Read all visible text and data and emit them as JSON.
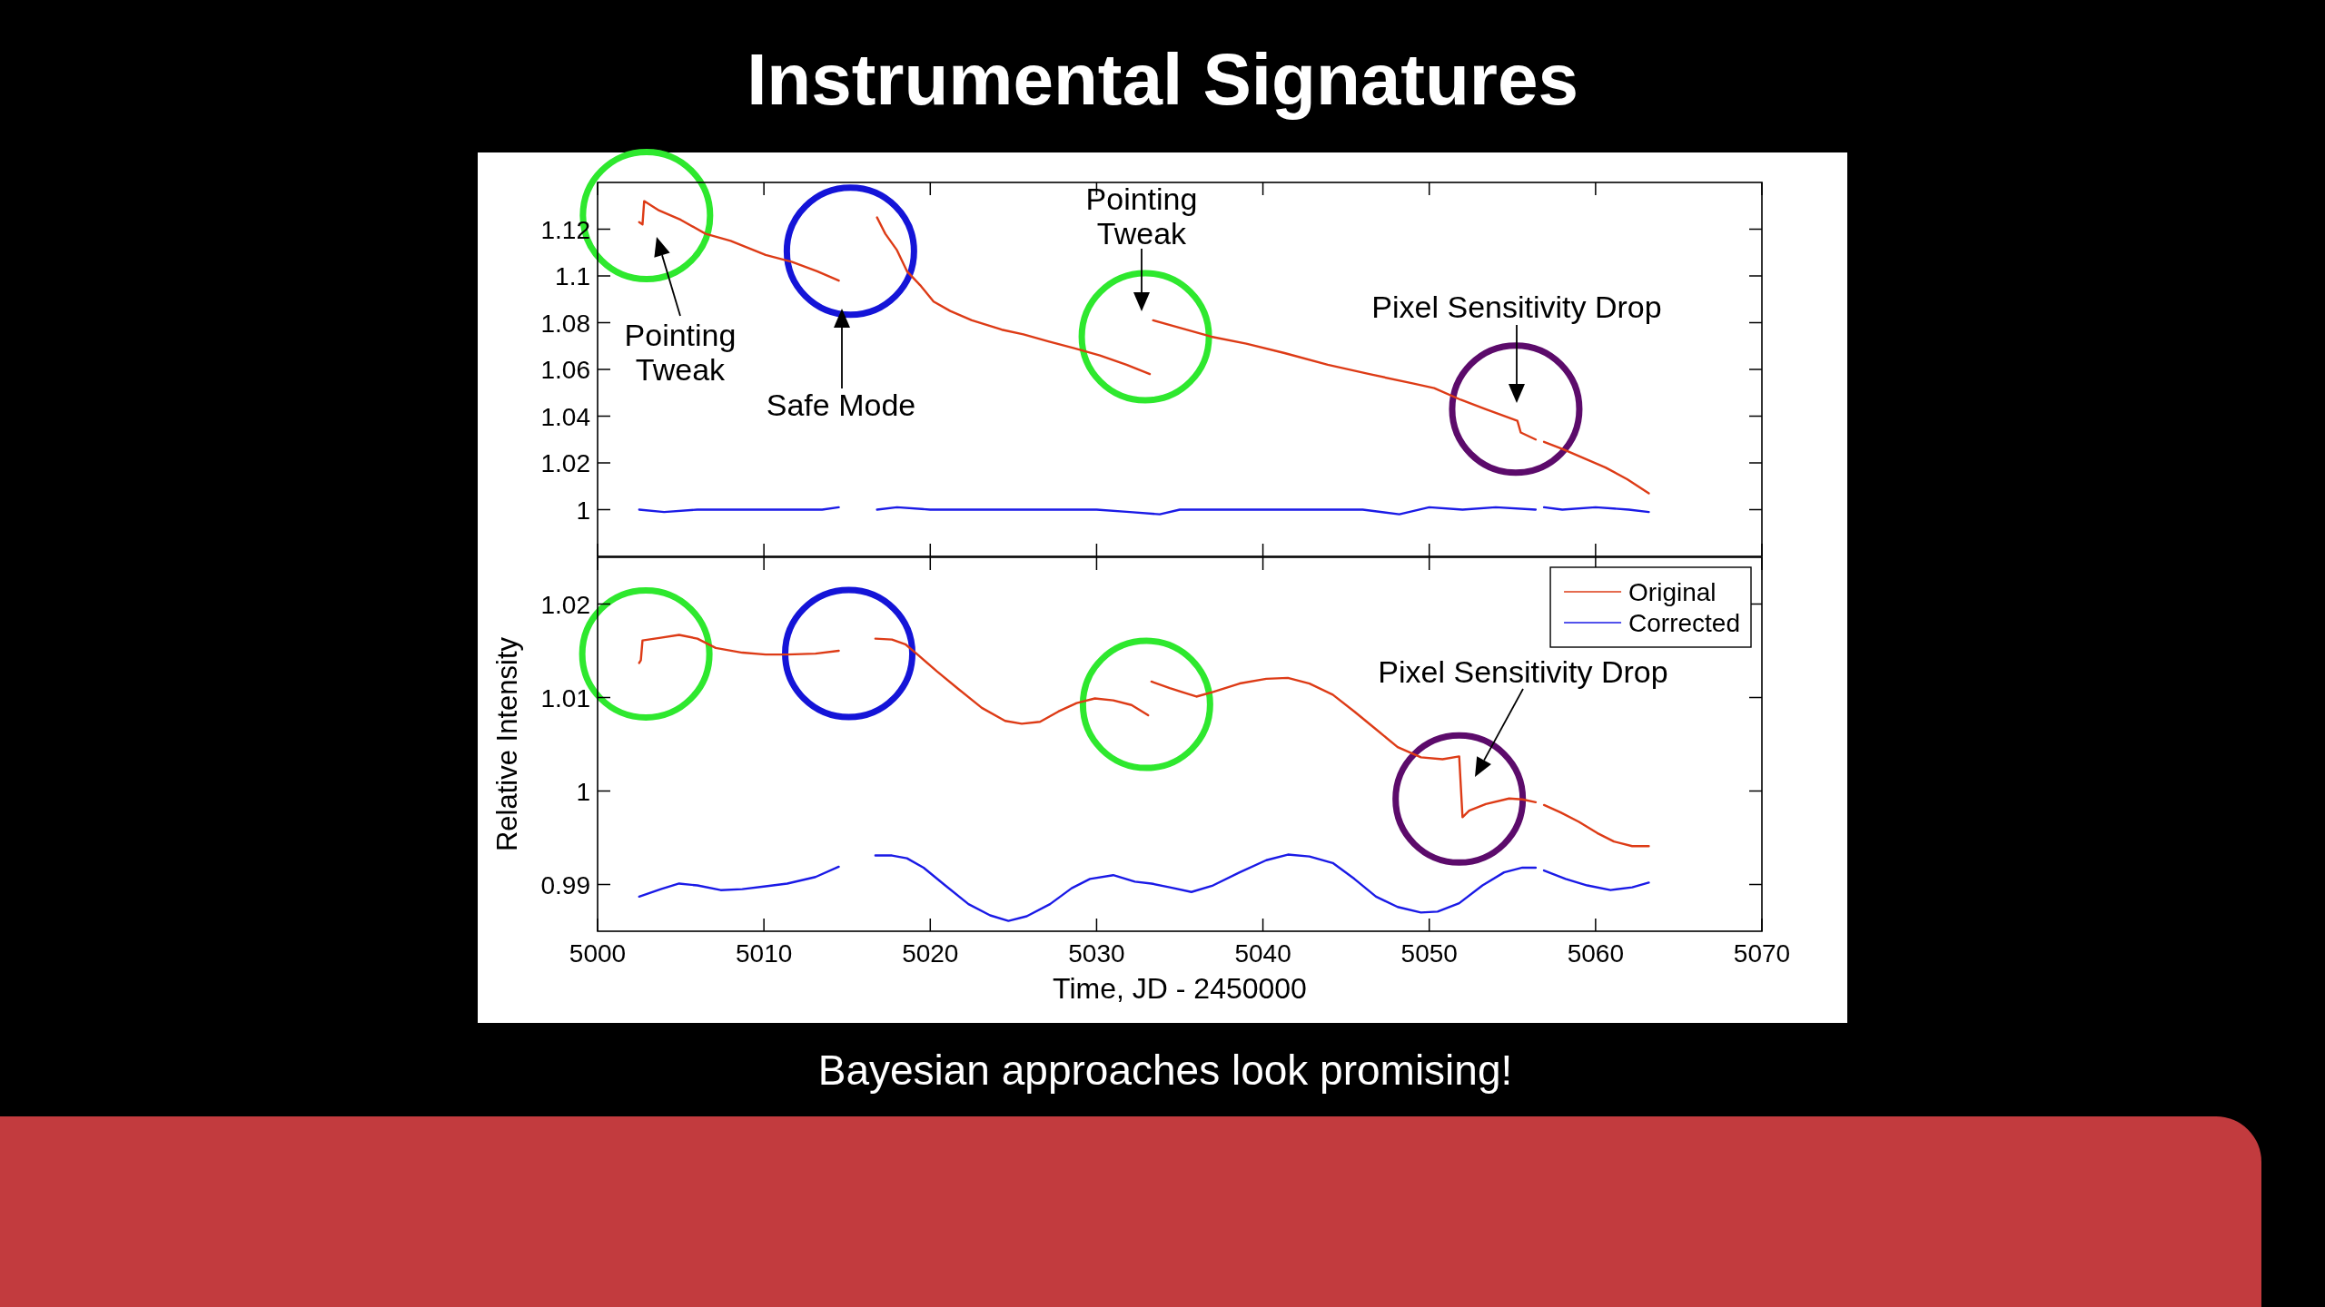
{
  "chart_data": [
    {
      "type": "line",
      "title": "Instrumental Signatures",
      "xlim": [
        5000,
        5070
      ],
      "xticks": [
        5000,
        5010,
        5020,
        5030,
        5040,
        5050,
        5060,
        5070
      ],
      "ylim": [
        0.98,
        1.14
      ],
      "yticks": [
        1,
        1.02,
        1.04,
        1.06,
        1.08,
        1.1,
        1.12
      ],
      "tick_labels": "y",
      "series": [
        {
          "color": "#dd3b16",
          "x": [
            5002.5,
            5002.7,
            5002.8,
            5003.7,
            5005.0,
            5006.5,
            5008.0,
            5010.1,
            5011.7,
            5013.2,
            5014.5,
            5015.6,
            5016.8,
            5017.3,
            5018.0,
            5018.6,
            5019.4,
            5020.2,
            5021.2,
            5022.5,
            5024.3,
            5025.6,
            5027.1,
            5028.7,
            5030.2,
            5031.8,
            5033.2,
            5033.3,
            5033.4,
            5034.9,
            5036.9,
            5039.0,
            5041.3,
            5043.9,
            5046.4,
            5049.0,
            5050.3,
            5051.9,
            5053.4,
            5055.3,
            5055.5,
            5056.4,
            5056.6,
            5056.9,
            5058.0,
            5059.3,
            5060.6,
            5061.9,
            5063.2
          ],
          "values": [
            1.123,
            1.122,
            1.132,
            1.128,
            1.124,
            1.118,
            1.115,
            1.109,
            1.106,
            1.102,
            1.098,
            null,
            1.125,
            1.118,
            1.111,
            1.102,
            1.096,
            1.089,
            1.085,
            1.081,
            1.077,
            1.075,
            1.072,
            1.069,
            1.066,
            1.062,
            1.058,
            null,
            1.081,
            1.078,
            1.074,
            1.071,
            1.067,
            1.062,
            1.058,
            1.054,
            1.052,
            1.047,
            1.043,
            1.038,
            1.033,
            1.03,
            null,
            1.029,
            1.026,
            1.022,
            1.018,
            1.013,
            1.007
          ]
        },
        {
          "color": "#1a1ae6",
          "x": [
            5002.5,
            5004.0,
            5006.0,
            5008.0,
            5010.0,
            5012.0,
            5013.5,
            5014.5,
            5015.6,
            5016.8,
            5018.0,
            5020.0,
            5022.0,
            5024.0,
            5026.0,
            5028.0,
            5030.0,
            5032.0,
            5033.8,
            5035.0,
            5038.0,
            5041.0,
            5044.0,
            5046.0,
            5048.2,
            5050.0,
            5052.0,
            5054.0,
            5056.4,
            5056.6,
            5056.9,
            5058.0,
            5060.0,
            5062.0,
            5063.2
          ],
          "values": [
            1.0,
            0.999,
            1.0,
            1.0,
            1.0,
            1.0,
            1.0,
            1.001,
            null,
            1.0,
            1.001,
            1.0,
            1.0,
            1.0,
            1.0,
            1.0,
            1.0,
            0.999,
            0.998,
            1.0,
            1.0,
            1.0,
            1.0,
            1.0,
            0.998,
            1.001,
            1.0,
            1.001,
            1.0,
            null,
            1.001,
            1.0,
            1.001,
            1.0,
            0.999
          ]
        }
      ],
      "annotations": [
        "Pointing Tweak",
        "Safe Mode",
        "Pointing Tweak",
        "Pixel Sensitivity Drop"
      ]
    },
    {
      "type": "line",
      "xlabel": "Time, JD - 2450000",
      "ylabel": "Relative Intensity",
      "xlim": [
        5000,
        5070
      ],
      "xticks": [
        5000,
        5010,
        5020,
        5030,
        5040,
        5050,
        5060,
        5070
      ],
      "ylim": [
        0.985,
        1.025
      ],
      "yticks": [
        0.99,
        1,
        1.01,
        1.02
      ],
      "legend": "top right",
      "series": [
        {
          "name": "Original",
          "color": "#dd3b16",
          "x": [
            5002.5,
            5002.6,
            5002.7,
            5003.8,
            5004.9,
            5006.0,
            5007.1,
            5008.7,
            5010.1,
            5011.4,
            5013.1,
            5014.5,
            5015.6,
            5016.7,
            5017.7,
            5018.5,
            5019.3,
            5020.4,
            5021.7,
            5023.1,
            5024.5,
            5025.5,
            5026.6,
            5027.7,
            5028.8,
            5029.9,
            5031.0,
            5032.1,
            5033.1,
            5033.2,
            5033.3,
            5034.4,
            5036.0,
            5037.0,
            5038.6,
            5040.2,
            5041.5,
            5042.8,
            5044.2,
            5045.5,
            5046.8,
            5048.1,
            5049.5,
            5050.8,
            5051.8,
            5052.0,
            5052.4,
            5053.4,
            5054.8,
            5055.6,
            5056.4,
            5056.6,
            5056.9,
            5057.9,
            5059.0,
            5060.1,
            5061.1,
            5062.2,
            5063.2
          ],
          "values": [
            1.0137,
            1.014,
            1.0161,
            1.0164,
            1.0167,
            1.0163,
            1.0153,
            1.0148,
            1.0146,
            1.0146,
            1.0147,
            1.015,
            null,
            1.0163,
            1.0162,
            1.0157,
            1.0145,
            1.0128,
            1.0109,
            1.0089,
            1.0075,
            1.0072,
            1.0074,
            1.0085,
            1.0094,
            1.0099,
            1.0097,
            1.0092,
            1.0081,
            null,
            1.0117,
            1.011,
            1.0101,
            1.0106,
            1.0115,
            1.012,
            1.0121,
            1.0115,
            1.0103,
            1.0085,
            1.0066,
            1.0047,
            1.0036,
            1.0034,
            1.0037,
            0.9972,
            0.9979,
            0.9986,
            0.9992,
            0.9991,
            0.9988,
            null,
            0.9985,
            0.9977,
            0.9967,
            0.9955,
            0.9946,
            0.9941,
            0.9941
          ]
        },
        {
          "name": "Corrected",
          "color": "#1a1ae6",
          "x": [
            5002.5,
            5003.8,
            5004.9,
            5006.0,
            5007.4,
            5008.7,
            5010.1,
            5011.4,
            5013.1,
            5014.5,
            5015.6,
            5016.7,
            5017.7,
            5018.6,
            5019.6,
            5020.9,
            5022.3,
            5023.6,
            5024.7,
            5025.8,
            5027.2,
            5028.5,
            5029.6,
            5031.0,
            5032.3,
            5033.3,
            5034.4,
            5035.7,
            5037.0,
            5038.6,
            5040.2,
            5041.5,
            5042.8,
            5044.2,
            5045.5,
            5046.8,
            5048.1,
            5049.5,
            5050.5,
            5051.8,
            5053.2,
            5054.5,
            5055.6,
            5056.4,
            5056.6,
            5056.9,
            5058.2,
            5059.5,
            5060.9,
            5062.2,
            5063.2
          ],
          "values": [
            0.9887,
            0.9895,
            0.9901,
            0.9899,
            0.9894,
            0.9895,
            0.9898,
            0.9901,
            0.9908,
            0.9919,
            null,
            0.9931,
            0.9931,
            0.9928,
            0.9918,
            0.9899,
            0.9879,
            0.9867,
            0.9861,
            0.9866,
            0.9879,
            0.9896,
            0.9906,
            0.991,
            0.9903,
            0.9901,
            0.9897,
            0.9892,
            0.9899,
            0.9913,
            0.9926,
            0.9932,
            0.993,
            0.9923,
            0.9906,
            0.9887,
            0.9876,
            0.987,
            0.9871,
            0.988,
            0.9899,
            0.9913,
            0.9918,
            0.9918,
            null,
            0.9915,
            0.9906,
            0.9899,
            0.9894,
            0.9897,
            0.9902
          ]
        }
      ],
      "annotations": [
        "Pixel Sensitivity Drop",
        "Bayesian approaches look promising!"
      ]
    }
  ]
}
